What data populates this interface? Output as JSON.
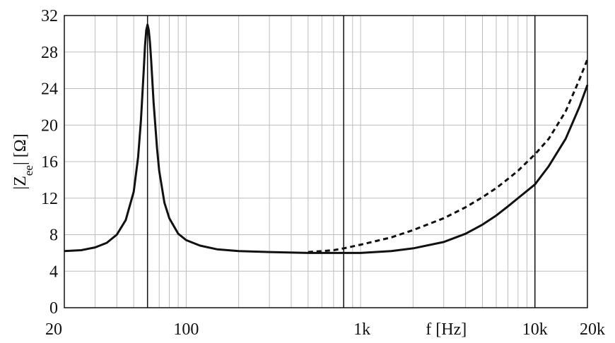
{
  "chart_data": {
    "type": "line",
    "title": "",
    "xscale": "log",
    "xlim": [
      20,
      20000
    ],
    "ylim": [
      0,
      32
    ],
    "grid": true,
    "ylabel_parts": {
      "prefix": "|Z",
      "subscript": "ee",
      "suffix": "| [Ω]"
    },
    "x_axis_label": "f [Hz]",
    "x_ticks": [
      {
        "value": 20,
        "label": "20"
      },
      {
        "value": 100,
        "label": "100"
      },
      {
        "value": 1000,
        "label": "1k"
      },
      {
        "value": 10000,
        "label": "10k"
      },
      {
        "value": 20000,
        "label": "20k"
      }
    ],
    "y_ticks": [
      {
        "value": 0,
        "label": "0"
      },
      {
        "value": 4,
        "label": "4"
      },
      {
        "value": 8,
        "label": "8"
      },
      {
        "value": 12,
        "label": "12"
      },
      {
        "value": 16,
        "label": "16"
      },
      {
        "value": 20,
        "label": "20"
      },
      {
        "value": 24,
        "label": "24"
      },
      {
        "value": 28,
        "label": "28"
      },
      {
        "value": 32,
        "label": "32"
      }
    ],
    "reference_lines_x": [
      60,
      800,
      10000
    ],
    "series": [
      {
        "style": "solid",
        "color": "#111111",
        "x": [
          20,
          25,
          30,
          35,
          40,
          45,
          50,
          53,
          55,
          57,
          58,
          59,
          60,
          61,
          62,
          63,
          65,
          68,
          70,
          75,
          80,
          90,
          100,
          120,
          150,
          200,
          300,
          500,
          800,
          1000,
          1500,
          2000,
          3000,
          4000,
          5000,
          6000,
          7000,
          8000,
          10000,
          12000,
          15000,
          18000,
          20000
        ],
        "values": [
          6.2,
          6.3,
          6.6,
          7.1,
          8.0,
          9.6,
          12.7,
          16.5,
          20.5,
          25.8,
          28.6,
          30.4,
          31.0,
          30.4,
          29.0,
          27.0,
          22.5,
          17.5,
          15.0,
          11.5,
          9.8,
          8.1,
          7.4,
          6.8,
          6.4,
          6.2,
          6.1,
          6.0,
          6.0,
          6.0,
          6.2,
          6.5,
          7.2,
          8.1,
          9.1,
          10.1,
          11.1,
          12.0,
          13.5,
          15.5,
          18.5,
          22.0,
          24.4
        ]
      },
      {
        "style": "dashed",
        "color": "#111111",
        "x": [
          500,
          600,
          700,
          800,
          1000,
          1500,
          2000,
          3000,
          4000,
          5000,
          6000,
          7000,
          8000,
          10000,
          12000,
          15000,
          18000,
          20000
        ],
        "values": [
          6.1,
          6.2,
          6.3,
          6.5,
          6.9,
          7.7,
          8.5,
          9.8,
          11.0,
          12.1,
          13.1,
          14.1,
          15.0,
          16.8,
          18.5,
          21.5,
          25.0,
          27.2
        ]
      }
    ]
  }
}
